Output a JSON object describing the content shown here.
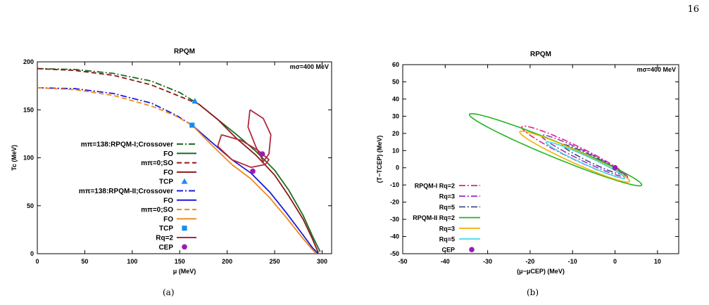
{
  "page": {
    "number": "16"
  },
  "colors": {
    "dark_green": "#1e6b1e",
    "dark_red": "#8b1a1a",
    "blue": "#1a1adb",
    "orange": "#f08a1a",
    "light_blue": "#1a8cf0",
    "crimson": "#b0283c",
    "purple": "#9b1ab5",
    "magenta": "#e0208c",
    "violet": "#9b30c8",
    "slate": "#4a4a8a",
    "green": "#22b522",
    "yellow": "#f0b400",
    "cyan": "#40d8e8"
  },
  "chart_data": [
    {
      "type": "line",
      "caption": "(a)",
      "title": "RPQM",
      "annotation": "mσ=400 MeV",
      "xlabel": "μ  (MeV)",
      "ylabel": "Tc (MeV)",
      "xlim": [
        0,
        310
      ],
      "ylim": [
        0,
        200
      ],
      "xticks": [
        "0",
        "50",
        "100",
        "150",
        "200",
        "250",
        "300"
      ],
      "yticks": [
        "0",
        "50",
        "100",
        "150",
        "200"
      ],
      "grid": false,
      "legend_position": "left",
      "series": [
        {
          "name": "mπ=138:RPQM-I;Crossover",
          "color": "#1e6b1e",
          "dash": "dashdot",
          "points": [
            [
              0,
              193
            ],
            [
              40,
              192
            ],
            [
              80,
              188
            ],
            [
              120,
              180
            ],
            [
              150,
              168
            ],
            [
              170,
              156
            ]
          ]
        },
        {
          "name": "FO",
          "color": "#1e6b1e",
          "dash": "solid",
          "points": [
            [
              170,
              156
            ],
            [
              190,
              140
            ],
            [
              210,
              124
            ],
            [
              230,
              107
            ],
            [
              250,
              87
            ],
            [
              265,
              66
            ],
            [
              280,
              40
            ],
            [
              290,
              18
            ],
            [
              298,
              2
            ]
          ]
        },
        {
          "name": "mπ=0;SO",
          "color": "#8b1a1a",
          "dash": "dashed",
          "points": [
            [
              0,
              193
            ],
            [
              40,
              191
            ],
            [
              80,
              186
            ],
            [
              120,
              176
            ],
            [
              150,
              164
            ],
            [
              170,
              156
            ]
          ]
        },
        {
          "name": "FO",
          "color": "#8b1a1a",
          "dash": "solid",
          "points": [
            [
              170,
              156
            ],
            [
              190,
              140
            ],
            [
              210,
              120
            ],
            [
              230,
              103
            ],
            [
              250,
              82
            ],
            [
              265,
              60
            ],
            [
              280,
              36
            ],
            [
              290,
              15
            ],
            [
              296,
              1
            ]
          ]
        },
        {
          "name": "TCP",
          "color": "#1a8cf0",
          "marker": "triangle",
          "points": [
            [
              166,
              159
            ]
          ]
        },
        {
          "name": "mπ=138:RPQM-II;Crossover",
          "color": "#1a1adb",
          "dash": "dashdot",
          "points": [
            [
              0,
              173
            ],
            [
              40,
              172
            ],
            [
              80,
              167
            ],
            [
              120,
              157
            ],
            [
              145,
              145
            ],
            [
              163,
              134
            ]
          ]
        },
        {
          "name": "FO",
          "color": "#1a1adb",
          "dash": "solid",
          "points": [
            [
              163,
              134
            ],
            [
              185,
              115
            ],
            [
              205,
              98
            ],
            [
              225,
              84
            ],
            [
              245,
              64
            ],
            [
              262,
              43
            ],
            [
              278,
              22
            ],
            [
              290,
              6
            ],
            [
              296,
              0
            ]
          ]
        },
        {
          "name": "mπ=0;SO",
          "color": "#f08a1a",
          "dash": "dashed",
          "points": [
            [
              0,
              173
            ],
            [
              40,
              171
            ],
            [
              80,
              165
            ],
            [
              120,
              154
            ],
            [
              145,
              144
            ],
            [
              163,
              134
            ]
          ]
        },
        {
          "name": "FO",
          "color": "#f08a1a",
          "dash": "solid",
          "points": [
            [
              163,
              134
            ],
            [
              185,
              112
            ],
            [
              205,
              93
            ],
            [
              225,
              78
            ],
            [
              245,
              58
            ],
            [
              262,
              38
            ],
            [
              278,
              18
            ],
            [
              290,
              4
            ],
            [
              294,
              0
            ]
          ]
        },
        {
          "name": "TCP",
          "color": "#1a8cf0",
          "marker": "square",
          "points": [
            [
              163,
              134
            ]
          ]
        },
        {
          "name": "Rq=2",
          "color": "#b0283c",
          "dash": "solid",
          "points": [
            [
              194,
              124
            ],
            [
              215,
              118
            ],
            [
              232,
              108
            ],
            [
              244,
              98
            ],
            [
              240,
              93
            ],
            [
              225,
              90
            ],
            [
              205,
              98
            ],
            [
              190,
              112
            ],
            [
              194,
              124
            ]
          ]
        },
        {
          "name": "Rq=2",
          "color": "#b0283c",
          "dash": "solid",
          "points": [
            [
              224,
              150
            ],
            [
              238,
              141
            ],
            [
              246,
              124
            ],
            [
              244,
              104
            ],
            [
              238,
              96
            ],
            [
              230,
              112
            ],
            [
              222,
              132
            ],
            [
              224,
              150
            ]
          ]
        },
        {
          "name": "CEP",
          "color": "#9b1ab5",
          "marker": "circle",
          "points": [
            [
              237,
              104
            ],
            [
              227,
              86
            ]
          ]
        }
      ],
      "legend": [
        {
          "label": "mπ=138:RPQM-I;Crossover",
          "color": "#1e6b1e",
          "dash": "dashdot"
        },
        {
          "label": "FO",
          "color": "#1e6b1e",
          "dash": "solid"
        },
        {
          "label": "mπ=0;SO",
          "color": "#8b1a1a",
          "dash": "dashed"
        },
        {
          "label": "FO",
          "color": "#8b1a1a",
          "dash": "solid"
        },
        {
          "label": "TCP",
          "color": "#1a8cf0",
          "marker": "triangle"
        },
        {
          "label": "mπ=138:RPQM-II;Crossover",
          "color": "#1a1adb",
          "dash": "dashdot"
        },
        {
          "label": "FO",
          "color": "#1a1adb",
          "dash": "solid"
        },
        {
          "label": "mπ=0;SO",
          "color": "#f08a1a",
          "dash": "dashed"
        },
        {
          "label": "FO",
          "color": "#f08a1a",
          "dash": "solid"
        },
        {
          "label": "TCP",
          "color": "#1a8cf0",
          "marker": "square"
        },
        {
          "label": "Rq=2",
          "color": "#b0283c",
          "dash": "solid"
        },
        {
          "label": "CEP",
          "color": "#9b1ab5",
          "marker": "circle"
        }
      ]
    },
    {
      "type": "line",
      "caption": "(b)",
      "title": "RPQM",
      "annotation": "mσ=400 MeV",
      "xlabel": "(μ−μCEP) (MeV)",
      "ylabel": "(T−TCEP) (MeV)",
      "xlim": [
        -50,
        15
      ],
      "ylim": [
        -50,
        60
      ],
      "xticks": [
        "-50",
        "-40",
        "-30",
        "-20",
        "-10",
        "0",
        "10"
      ],
      "yticks": [
        "-50",
        "-40",
        "-30",
        "-20",
        "-10",
        "0",
        "10",
        "20",
        "30",
        "40",
        "50",
        "60"
      ],
      "grid": false,
      "legend_position": "bottom-left",
      "ellipses": [
        {
          "name": "RPQM-I Rq=2",
          "color": "#e0208c",
          "dash": "dashdot",
          "cx": -9.5,
          "cy": 9,
          "a": 19.5,
          "b": 2.8,
          "angle_deg": -51
        },
        {
          "name": "Rq=3",
          "color": "#9b30c8",
          "dash": "dashdot",
          "cx": -7.5,
          "cy": 7,
          "a": 15.5,
          "b": 2.0,
          "angle_deg": -51
        },
        {
          "name": "Rq=5",
          "color": "#4a4a8a",
          "dash": "dashdot",
          "cx": -5.5,
          "cy": 5,
          "a": 11,
          "b": 1.4,
          "angle_deg": -51
        },
        {
          "name": "RPQM-II Rq=2",
          "color": "#22b522",
          "dash": "solid",
          "cx": -14,
          "cy": 10.5,
          "a": 29,
          "b": 3.4,
          "angle_deg": -46
        },
        {
          "name": "Rq=3",
          "color": "#f0b400",
          "dash": "solid",
          "cx": -9.5,
          "cy": 6.5,
          "a": 19.5,
          "b": 2.6,
          "angle_deg": -49
        },
        {
          "name": "Rq=5",
          "color": "#40d8e8",
          "dash": "solid",
          "cx": -7,
          "cy": 4.5,
          "a": 14,
          "b": 1.7,
          "angle_deg": -49
        }
      ],
      "cep_point": [
        0,
        0
      ],
      "legend": [
        {
          "label": "RPQM-I Rq=2",
          "color": "#e0208c",
          "dash": "dashdot"
        },
        {
          "label": "Rq=3",
          "color": "#9b30c8",
          "dash": "dashdot"
        },
        {
          "label": "Rq=5",
          "color": "#4a4a8a",
          "dash": "dashdot"
        },
        {
          "label": "RPQM-II Rq=2",
          "color": "#22b522",
          "dash": "solid"
        },
        {
          "label": "Rq=3",
          "color": "#f0b400",
          "dash": "solid"
        },
        {
          "label": "Rq=5",
          "color": "#40d8e8",
          "dash": "solid"
        },
        {
          "label": "CEP",
          "color": "#9b1ab5",
          "marker": "circle"
        }
      ]
    }
  ]
}
